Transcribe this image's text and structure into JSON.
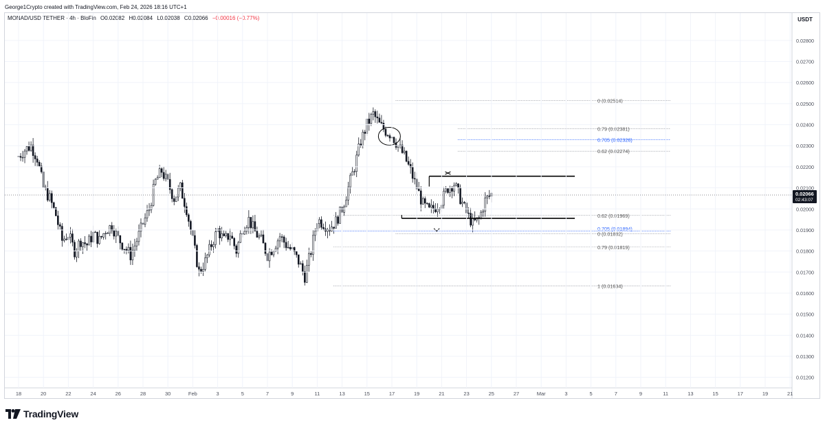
{
  "header": {
    "credit": "George1Crypto created with TradingView.com, Feb 24, 2026 18:16 UTC+1"
  },
  "legend": {
    "symbol": "MONAD/USD TETHER · 4h · BloFin",
    "open": "O0.02082",
    "high": "H0.02084",
    "low": "L0.02038",
    "close": "C0.02066",
    "change": "−0.00016 (−0.77%)",
    "change_color": "#f23645"
  },
  "axis": {
    "unit": "USDT"
  },
  "price_tag": {
    "price": "0.02066",
    "countdown": "02:43:07",
    "bg": "#131722"
  },
  "branding": {
    "logo_text": "TradingView"
  },
  "colors": {
    "candle": "#131722",
    "fib_line": "#9598a1",
    "fib_highlight": "#2962ff",
    "grid": "#f0f3fa",
    "axis_text": "#4a4e5a"
  },
  "chart_data": {
    "type": "candlestick",
    "symbol": "MONAD/USD TETHER",
    "interval": "4h",
    "ylim": [
      0.0115,
      0.0293
    ],
    "y_ticks": [
      "0.02800",
      "0.02700",
      "0.02600",
      "0.02500",
      "0.02400",
      "0.02300",
      "0.02200",
      "0.02100",
      "0.02000",
      "0.01900",
      "0.01800",
      "0.01700",
      "0.01600",
      "0.01500",
      "0.01400",
      "0.01300",
      "0.01200"
    ],
    "x_ticks": [
      {
        "label": "18",
        "day": 0
      },
      {
        "label": "20",
        "day": 2
      },
      {
        "label": "22",
        "day": 4
      },
      {
        "label": "24",
        "day": 6
      },
      {
        "label": "26",
        "day": 8
      },
      {
        "label": "28",
        "day": 10
      },
      {
        "label": "30",
        "day": 12
      },
      {
        "label": "Feb",
        "day": 14
      },
      {
        "label": "3",
        "day": 16
      },
      {
        "label": "5",
        "day": 18
      },
      {
        "label": "7",
        "day": 20
      },
      {
        "label": "9",
        "day": 22
      },
      {
        "label": "11",
        "day": 24
      },
      {
        "label": "13",
        "day": 26
      },
      {
        "label": "15",
        "day": 28
      },
      {
        "label": "17",
        "day": 30
      },
      {
        "label": "19",
        "day": 32
      },
      {
        "label": "21",
        "day": 34
      },
      {
        "label": "23",
        "day": 36
      },
      {
        "label": "25",
        "day": 38
      },
      {
        "label": "27",
        "day": 40
      },
      {
        "label": "Mar",
        "day": 42
      },
      {
        "label": "3",
        "day": 44
      },
      {
        "label": "5",
        "day": 46
      },
      {
        "label": "7",
        "day": 48
      },
      {
        "label": "9",
        "day": 50
      },
      {
        "label": "11",
        "day": 52
      },
      {
        "label": "13",
        "day": 54
      },
      {
        "label": "15",
        "day": 56
      },
      {
        "label": "17",
        "day": 58
      },
      {
        "label": "19",
        "day": 60
      },
      {
        "label": "21",
        "day": 62
      }
    ],
    "price_path": [
      [
        0,
        0.0225
      ],
      [
        0.5,
        0.0228
      ],
      [
        1,
        0.023
      ],
      [
        1.5,
        0.0224
      ],
      [
        2,
        0.021
      ],
      [
        2.5,
        0.0205
      ],
      [
        3,
        0.0197
      ],
      [
        3.5,
        0.0185
      ],
      [
        4,
        0.0188
      ],
      [
        4.5,
        0.018
      ],
      [
        5,
        0.0185
      ],
      [
        5.5,
        0.0183
      ],
      [
        6,
        0.0188
      ],
      [
        6.5,
        0.0185
      ],
      [
        7,
        0.019
      ],
      [
        7.5,
        0.0192
      ],
      [
        8,
        0.0186
      ],
      [
        8.5,
        0.0182
      ],
      [
        9,
        0.0178
      ],
      [
        9.5,
        0.0185
      ],
      [
        10,
        0.0193
      ],
      [
        10.5,
        0.02
      ],
      [
        11,
        0.0213
      ],
      [
        11.5,
        0.0218
      ],
      [
        12,
        0.0212
      ],
      [
        12.5,
        0.0205
      ],
      [
        13,
        0.021
      ],
      [
        13.5,
        0.02
      ],
      [
        14,
        0.0185
      ],
      [
        14.5,
        0.017
      ],
      [
        15,
        0.0175
      ],
      [
        15.5,
        0.0183
      ],
      [
        16,
        0.019
      ],
      [
        16.5,
        0.0185
      ],
      [
        17,
        0.0188
      ],
      [
        17.5,
        0.018
      ],
      [
        18,
        0.0191
      ],
      [
        18.5,
        0.0195
      ],
      [
        19,
        0.0189
      ],
      [
        19.5,
        0.0185
      ],
      [
        20,
        0.0178
      ],
      [
        20.5,
        0.0182
      ],
      [
        21,
        0.0187
      ],
      [
        21.5,
        0.0183
      ],
      [
        22,
        0.018
      ],
      [
        22.5,
        0.0175
      ],
      [
        23,
        0.0168
      ],
      [
        23.5,
        0.018
      ],
      [
        24,
        0.0195
      ],
      [
        24.5,
        0.0193
      ],
      [
        25,
        0.0191
      ],
      [
        25.5,
        0.0194
      ],
      [
        26,
        0.02
      ],
      [
        26.5,
        0.021
      ],
      [
        27,
        0.022
      ],
      [
        27.5,
        0.0232
      ],
      [
        28,
        0.024
      ],
      [
        28.5,
        0.0245
      ],
      [
        29,
        0.024
      ],
      [
        29.5,
        0.0237
      ],
      [
        30,
        0.0235
      ],
      [
        30.5,
        0.023
      ],
      [
        31,
        0.0225
      ],
      [
        31.5,
        0.0218
      ],
      [
        32,
        0.021
      ],
      [
        32.5,
        0.0202
      ],
      [
        33,
        0.0199
      ],
      [
        33.5,
        0.0201
      ],
      [
        34,
        0.0204
      ],
      [
        34.5,
        0.021
      ],
      [
        35,
        0.0212
      ],
      [
        35.5,
        0.0205
      ],
      [
        36,
        0.0198
      ],
      [
        36.5,
        0.0193
      ],
      [
        37,
        0.0195
      ],
      [
        37.5,
        0.0204
      ],
      [
        38,
        0.0207
      ]
    ],
    "annotations": [
      {
        "text": "0 (0.02514)",
        "price": 0.02514,
        "highlight": false,
        "from_day": 30.3,
        "to_day": 52.4
      },
      {
        "text": "0.79 (0.02381)",
        "price": 0.02381,
        "highlight": false,
        "from_day": 35.3,
        "to_day": 52.4
      },
      {
        "text": "0.705 (0.02328)",
        "price": 0.02328,
        "highlight": true,
        "from_day": 35.3,
        "to_day": 52.4
      },
      {
        "text": "0.62 (0.02274)",
        "price": 0.02274,
        "highlight": false,
        "from_day": 35.3,
        "to_day": 52.4
      },
      {
        "text": "0.62 (0.01969)",
        "price": 0.01969,
        "highlight": false,
        "from_day": 25.3,
        "to_day": 52.4
      },
      {
        "text": "0.705 (0.01894)",
        "price": 0.01894,
        "highlight": true,
        "from_day": 25.3,
        "to_day": 52.4
      },
      {
        "text": "0 (0.01882)",
        "price": 0.01882,
        "highlight": false,
        "from_day": 30.3,
        "to_day": 52.4
      },
      {
        "text": "0.79 (0.01819)",
        "price": 0.01819,
        "highlight": false,
        "from_day": 25.3,
        "to_day": 52.4
      },
      {
        "text": "1 (0.01634)",
        "price": 0.01634,
        "highlight": false,
        "from_day": 25.3,
        "to_day": 52.4
      }
    ],
    "zones": [
      {
        "top": 0.02155,
        "bottom": 0.01955,
        "from_day": 33.0,
        "to_day": 44.7
      }
    ],
    "marks": [
      {
        "symbol": "x",
        "day": 34.5,
        "price": 0.0217
      },
      {
        "symbol": "v",
        "day": 33.6,
        "price": 0.0193
      }
    ],
    "circle": {
      "day": 29.8,
      "price": 0.02345
    }
  }
}
